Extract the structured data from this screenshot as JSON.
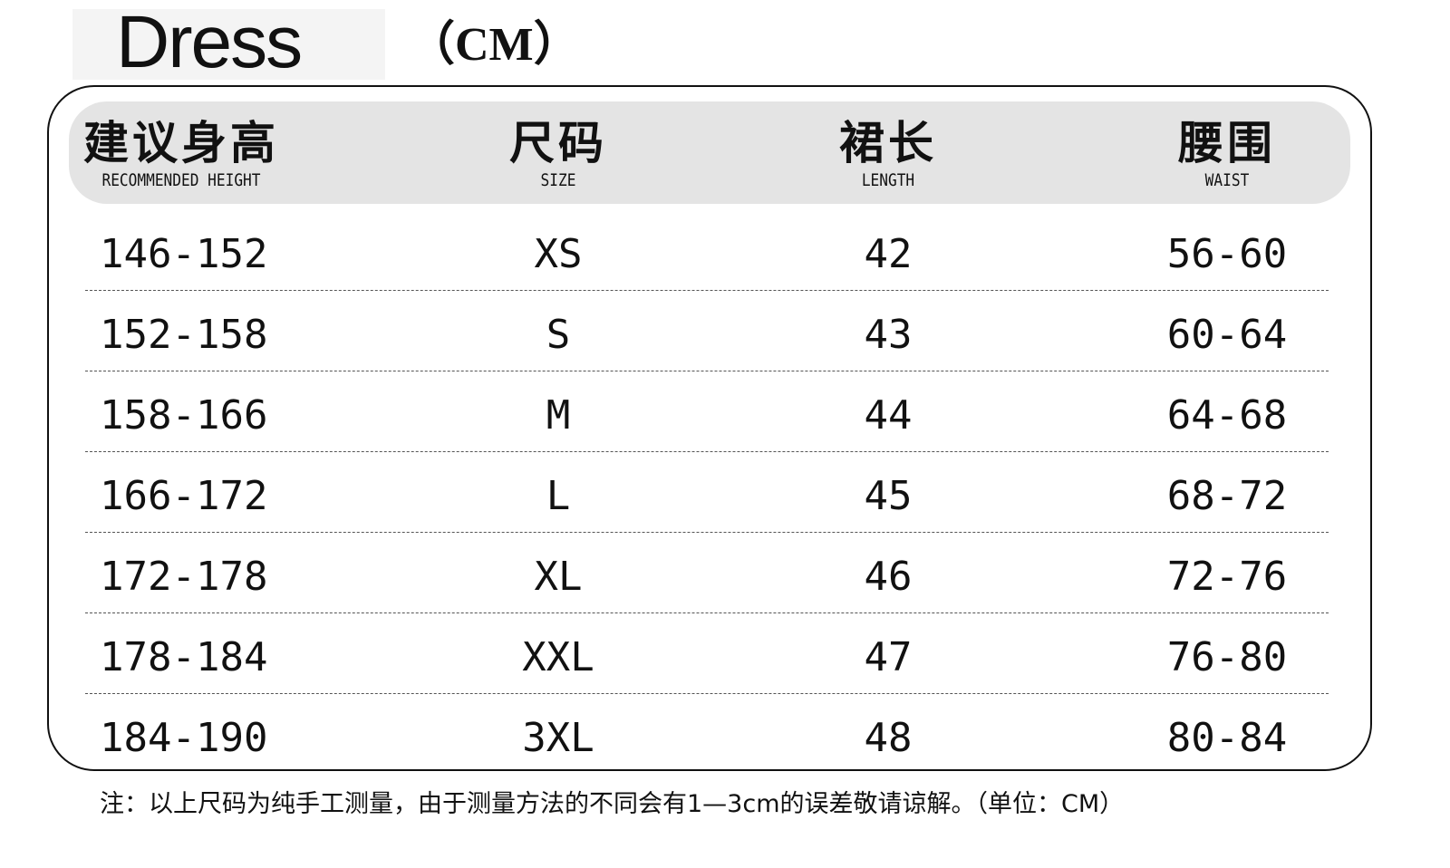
{
  "title": "Dress",
  "unit": "（CM）",
  "headers": [
    {
      "cn": "建议身高",
      "en": "RECOMMENDED HEIGHT"
    },
    {
      "cn": "尺码",
      "en": "SIZE"
    },
    {
      "cn": "裙长",
      "en": "LENGTH"
    },
    {
      "cn": "腰围",
      "en": "WAIST"
    }
  ],
  "rows": [
    [
      "146-152",
      "XS",
      "42",
      "56-60"
    ],
    [
      "152-158",
      "S",
      "43",
      "60-64"
    ],
    [
      "158-166",
      "M",
      "44",
      "64-68"
    ],
    [
      "166-172",
      "L",
      "45",
      "68-72"
    ],
    [
      "172-178",
      "XL",
      "46",
      "72-76"
    ],
    [
      "178-184",
      "XXL",
      "47",
      "76-80"
    ],
    [
      "184-190",
      "3XL",
      "48",
      "80-84"
    ]
  ],
  "note": "注：以上尺码为纯手工测量，由于测量方法的不同会有1—3cm的误差敬请谅解。（单位：CM）"
}
